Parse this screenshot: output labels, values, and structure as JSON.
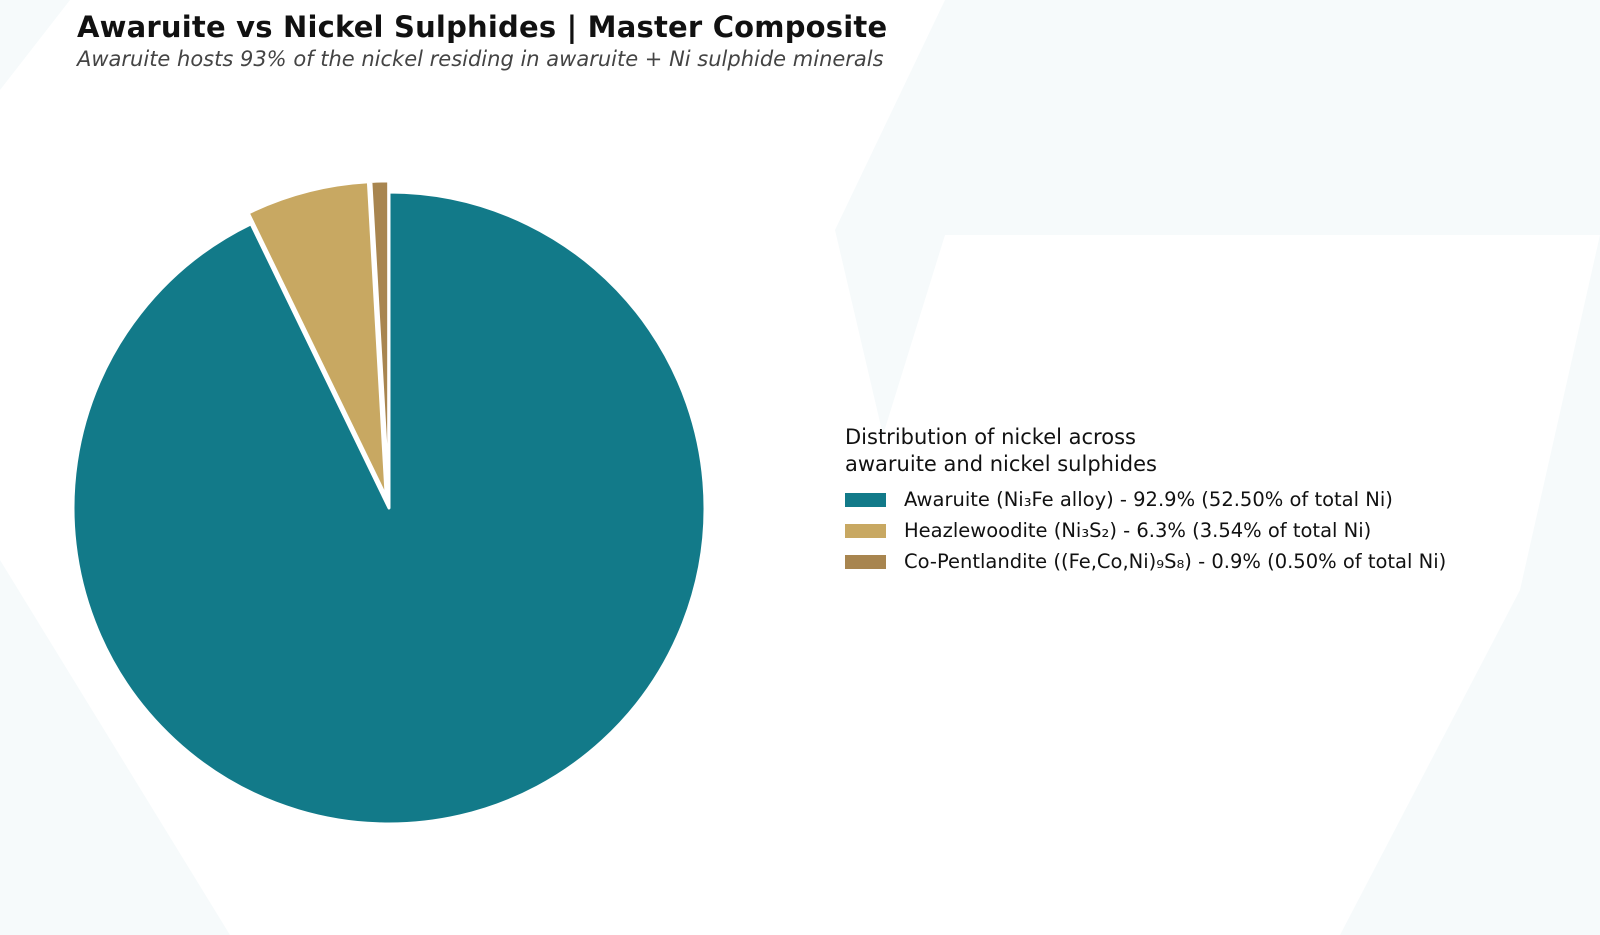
{
  "title": "Awaruite vs Nickel Sulphides  |  Master Composite",
  "subtitle": "Awaruite hosts 93% of the nickel residing in awaruite + Ni sulphide minerals",
  "colors": {
    "background": "#f6fafb",
    "plot_background": "#ffffff",
    "wedge_edge": "#ffffff"
  },
  "chart_data": {
    "type": "pie",
    "title": "Awaruite vs Nickel Sulphides  |  Master Composite",
    "subtitle": "Awaruite hosts 93% of the nickel residing in awaruite + Ni sulphide minerals",
    "start_angle_deg": 90,
    "direction": "clockwise",
    "legend_title": "Distribution of nickel across awaruite and nickel sulphides",
    "legend_position": "right",
    "slices": [
      {
        "label": "Awaruite (Ni₃Fe alloy)  -  92.9%  (52.50% of total Ni)",
        "value": 92.9,
        "total_ni_pct": 52.5,
        "color": "#127a89",
        "exploded": false
      },
      {
        "label": "Heazlewoodite (Ni₃S₂)  -  6.3%  (3.54% of total Ni)",
        "value": 6.3,
        "total_ni_pct": 3.54,
        "color": "#c8a862",
        "exploded": true
      },
      {
        "label": "Co-Pentlandite ((Fe,Co,Ni)₉S₈)  -  0.9%  (0.50% of total Ni)",
        "value": 0.9,
        "total_ni_pct": 0.5,
        "color": "#a8854f",
        "exploded": true
      }
    ]
  }
}
